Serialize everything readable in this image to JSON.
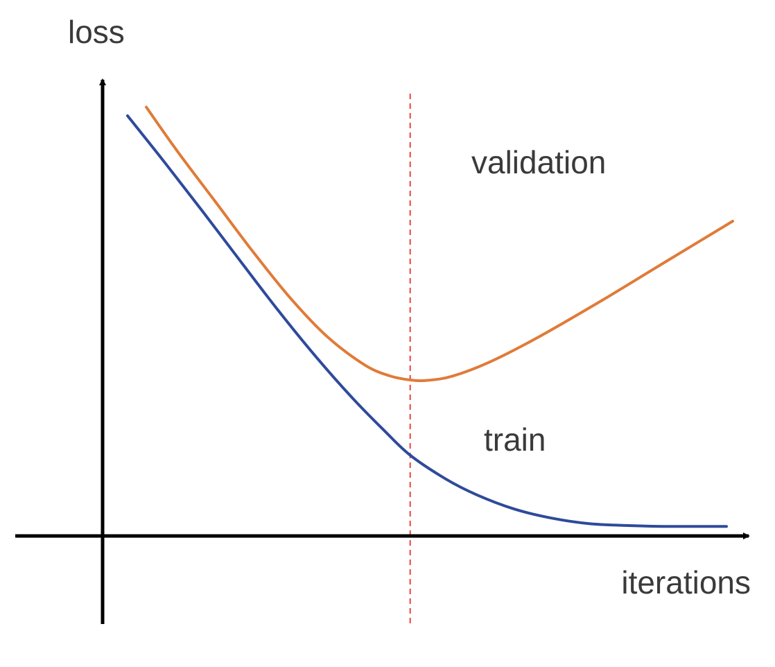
{
  "chart_data": {
    "type": "line",
    "title": "",
    "xlabel": "iterations",
    "ylabel": "loss",
    "x_range": [
      0,
      100
    ],
    "y_range": [
      0,
      100
    ],
    "grid": false,
    "legend": "none",
    "tick_labels": false,
    "vline": {
      "x": 49.3,
      "style": "dashed",
      "color": "#e8453c"
    },
    "series": [
      {
        "name": "train",
        "color": "#2e4a9b",
        "points": [
          [
            4.0,
            92.1
          ],
          [
            10.0,
            81.8
          ],
          [
            16.0,
            71.2
          ],
          [
            22.0,
            60.4
          ],
          [
            28.0,
            49.7
          ],
          [
            34.0,
            39.6
          ],
          [
            40.0,
            30.3
          ],
          [
            45.0,
            23.3
          ],
          [
            49.3,
            17.7
          ],
          [
            55.0,
            12.5
          ],
          [
            60.0,
            9.0
          ],
          [
            66.0,
            5.9
          ],
          [
            72.0,
            3.9
          ],
          [
            78.0,
            2.7
          ],
          [
            84.0,
            2.3
          ],
          [
            90.0,
            2.1
          ],
          [
            100.0,
            2.1
          ]
        ]
      },
      {
        "name": "validation",
        "color": "#e07b39",
        "points": [
          [
            7.0,
            94.0
          ],
          [
            12.0,
            84.3
          ],
          [
            18.0,
            73.4
          ],
          [
            24.0,
            62.5
          ],
          [
            30.0,
            52.3
          ],
          [
            36.0,
            43.7
          ],
          [
            42.0,
            37.5
          ],
          [
            46.0,
            35.1
          ],
          [
            49.3,
            34.2
          ],
          [
            52.0,
            34.1
          ],
          [
            56.0,
            35.0
          ],
          [
            62.0,
            38.1
          ],
          [
            70.0,
            43.7
          ],
          [
            80.0,
            51.6
          ],
          [
            90.0,
            59.9
          ],
          [
            101.0,
            69.0
          ]
        ]
      }
    ]
  }
}
